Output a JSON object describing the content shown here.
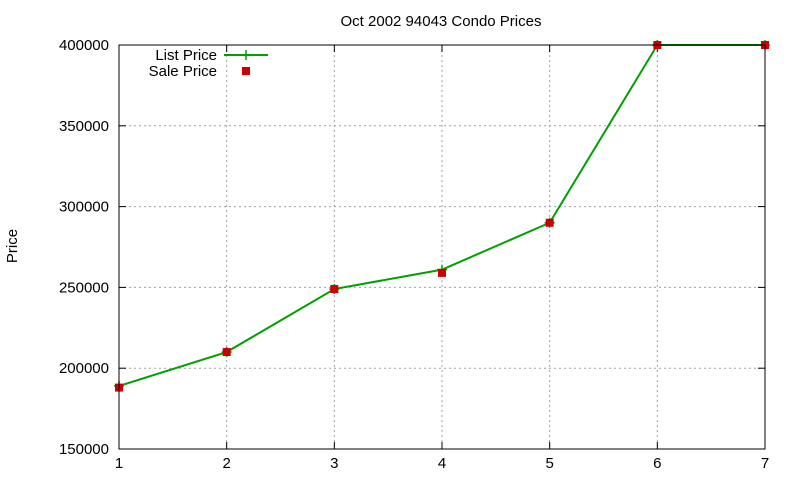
{
  "chart_data": {
    "type": "line",
    "title": "Oct 2002 94043 Condo Prices",
    "xlabel": "",
    "ylabel": "Price",
    "x": [
      1,
      2,
      3,
      4,
      5,
      6,
      7
    ],
    "xlim": [
      1,
      7
    ],
    "ylim": [
      150000,
      400000
    ],
    "xticks": [
      "1",
      "2",
      "3",
      "4",
      "5",
      "6",
      "7"
    ],
    "yticks": [
      "150000",
      "200000",
      "250000",
      "300000",
      "350000",
      "400000"
    ],
    "grid": true,
    "legend_position": "top-left",
    "series": [
      {
        "name": "List Price",
        "style": "line",
        "color": "#00a000",
        "values": [
          189000,
          210000,
          249000,
          261000,
          290000,
          400000,
          400000
        ]
      },
      {
        "name": "Sale Price",
        "style": "points",
        "color": "#cc0000",
        "values": [
          188000,
          210000,
          249000,
          259000,
          290000,
          400000,
          400000
        ]
      }
    ]
  }
}
